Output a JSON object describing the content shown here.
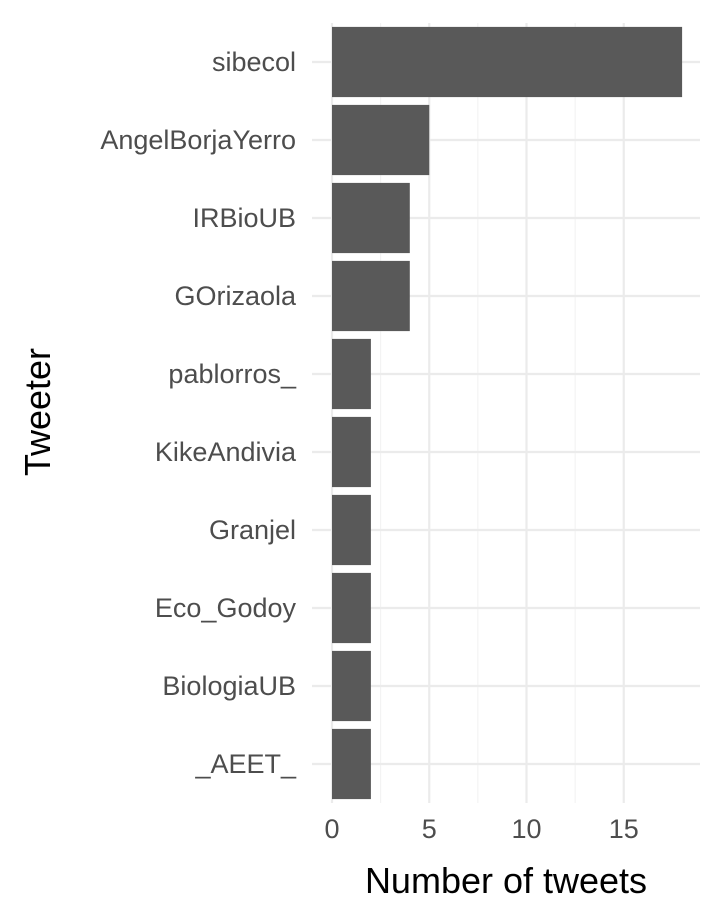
{
  "chart_data": {
    "type": "bar",
    "orientation": "horizontal",
    "categories": [
      "sibecol",
      "AngelBorjaYerro",
      "IRBioUB",
      "GOrizaola",
      "pablorros_",
      "KikeAndivia",
      "Granjel",
      "Eco_Godoy",
      "BiologiaUB",
      "_AEET_"
    ],
    "values": [
      18,
      5,
      4,
      4,
      2,
      2,
      2,
      2,
      2,
      2
    ],
    "xlabel": "Number of tweets",
    "ylabel": "Tweeter",
    "xlim": [
      0,
      18.9
    ],
    "x_ticks": [
      0,
      5,
      10,
      15
    ],
    "x_tick_labels": [
      "0",
      "5",
      "10",
      "15"
    ],
    "bar_color": "#595959",
    "grid": true,
    "legend": "none"
  }
}
